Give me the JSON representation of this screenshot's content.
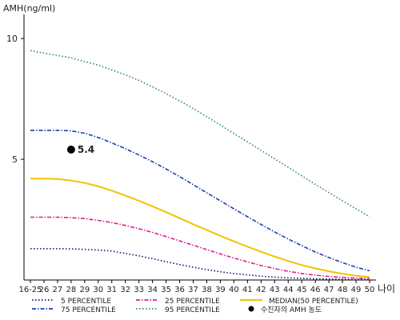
{
  "chart_data": {
    "type": "line",
    "ylabel": "AMH(ng/ml)",
    "xlabel": "나이",
    "ylim": [
      0,
      11
    ],
    "yticks": [
      5,
      10
    ],
    "grid": false,
    "legend_position": "bottom",
    "categories": [
      "16-25",
      "26",
      "27",
      "28",
      "29",
      "30",
      "31",
      "32",
      "33",
      "34",
      "35",
      "36",
      "37",
      "38",
      "39",
      "40",
      "41",
      "42",
      "43",
      "44",
      "45",
      "46",
      "47",
      "48",
      "49",
      "50"
    ],
    "series": [
      {
        "name": "5 PERCENTILE",
        "color": "#0a1a6e",
        "dash": "dot",
        "values": [
          1.3,
          1.3,
          1.3,
          1.29,
          1.27,
          1.24,
          1.2,
          1.1,
          1.0,
          0.88,
          0.76,
          0.64,
          0.53,
          0.43,
          0.34,
          0.27,
          0.21,
          0.16,
          0.12,
          0.09,
          0.07,
          0.05,
          0.04,
          0.03,
          0.02,
          0.02
        ]
      },
      {
        "name": "25 PERCENTILE",
        "color": "#e0218a",
        "dash": "dashdot",
        "values": [
          2.6,
          2.6,
          2.6,
          2.58,
          2.54,
          2.47,
          2.38,
          2.26,
          2.12,
          1.97,
          1.8,
          1.62,
          1.44,
          1.26,
          1.08,
          0.91,
          0.75,
          0.6,
          0.47,
          0.36,
          0.27,
          0.2,
          0.15,
          0.11,
          0.08,
          0.06
        ]
      },
      {
        "name": "MEDIAN(50 PERCENTILE)",
        "color": "#f2c200",
        "dash": "solid",
        "values": [
          4.2,
          4.2,
          4.18,
          4.12,
          4.02,
          3.88,
          3.7,
          3.5,
          3.28,
          3.05,
          2.81,
          2.56,
          2.31,
          2.07,
          1.83,
          1.6,
          1.38,
          1.17,
          0.97,
          0.79,
          0.62,
          0.48,
          0.36,
          0.26,
          0.18,
          0.12
        ]
      },
      {
        "name": "75 PERCENTILE",
        "color": "#1e3fb0",
        "dash": "dashdot",
        "values": [
          6.2,
          6.2,
          6.2,
          6.18,
          6.08,
          5.9,
          5.68,
          5.44,
          5.18,
          4.9,
          4.6,
          4.28,
          3.95,
          3.61,
          3.28,
          2.95,
          2.62,
          2.3,
          1.99,
          1.7,
          1.42,
          1.16,
          0.93,
          0.72,
          0.53,
          0.38
        ]
      },
      {
        "name": "95 PERCENTILE",
        "color": "#2e8b57",
        "dash": "dot",
        "values": [
          9.5,
          9.4,
          9.3,
          9.2,
          9.05,
          8.9,
          8.7,
          8.5,
          8.27,
          8.0,
          7.72,
          7.42,
          7.1,
          6.76,
          6.42,
          6.07,
          5.72,
          5.37,
          5.02,
          4.67,
          4.31,
          3.96,
          3.62,
          3.28,
          2.95,
          2.62
        ]
      }
    ],
    "annotations": [
      {
        "legend_label": "수진자의 AMH 농도",
        "x": "28",
        "y": 5.4,
        "text": "5.4",
        "color": "#000000"
      }
    ]
  }
}
